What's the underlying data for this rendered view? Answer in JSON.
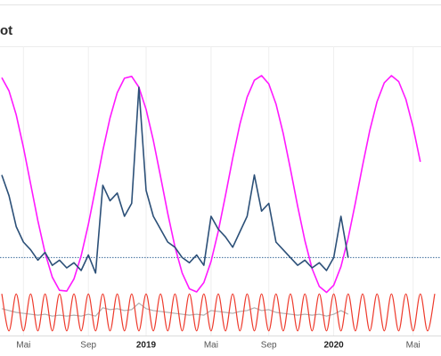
{
  "chart_data": {
    "type": "line",
    "title": "ot",
    "categories": [
      null,
      null,
      null,
      "Mai",
      null,
      null,
      null,
      null,
      null,
      null,
      null,
      null,
      "Sep",
      null,
      null,
      null,
      null,
      null,
      null,
      null,
      "2019",
      null,
      null,
      null,
      null,
      null,
      null,
      null,
      null,
      "Mai",
      null,
      null,
      null,
      null,
      null,
      null,
      null,
      "Sep",
      null,
      null,
      null,
      null,
      null,
      null,
      null,
      null,
      "2020",
      null,
      null,
      null,
      null,
      null,
      null,
      null,
      null,
      null,
      null,
      "Mai",
      null,
      null,
      null
    ],
    "ylim": [
      0,
      100
    ],
    "y2lim": [
      -1.2,
      1.2
    ],
    "reference_line": 14,
    "grid": true,
    "series": [
      {
        "color": "#ff19ff",
        "values": [
          83.7,
          78.6,
          69.3,
          56.7,
          42.5,
          28.3,
          15.8,
          6.4,
          1.3,
          1.0,
          5.7,
          14.7,
          26.9,
          41.0,
          55.4,
          68.1,
          77.9,
          83.5,
          84.2,
          80.0,
          71.4,
          59.4,
          45.4,
          31.1,
          18.1,
          8.0,
          1.9,
          0.7,
          4.3,
          12.5,
          24.2,
          38.1,
          52.5,
          65.7,
          76.2,
          82.7,
          84.5,
          81.3,
          73.5,
          62.1,
          48.3,
          33.9,
          20.6,
          9.7,
          2.8,
          0.5,
          3.3,
          10.5,
          21.5,
          35.2,
          49.7,
          63.3,
          74.4,
          81.7,
          84.5,
          82.2,
          75.3,
          64.5,
          51.1,
          null,
          null
        ]
      },
      {
        "color": "#2c5078",
        "values": [
          46,
          38,
          26,
          20,
          17,
          13,
          16,
          11,
          13,
          10,
          12,
          9,
          15,
          8,
          42,
          36,
          39,
          30,
          35,
          80,
          40,
          30,
          25,
          20,
          18,
          14,
          12,
          15,
          11,
          30,
          25,
          22,
          18,
          24,
          30,
          46,
          32,
          35,
          20,
          17,
          14,
          11,
          13,
          10,
          12,
          9,
          14,
          30,
          14,
          null,
          null,
          null,
          null,
          null,
          null,
          null,
          null,
          null,
          null,
          null,
          null
        ]
      },
      {
        "color": "#ee3a2c",
        "axis": "y2",
        "smooth": true,
        "values": [
          1,
          -1,
          1,
          -1,
          1,
          -1,
          1,
          -1,
          1,
          -1,
          1,
          -1,
          1,
          -1,
          1,
          -1,
          1,
          -1,
          1,
          -1,
          1,
          -1,
          1,
          -1,
          1,
          -1,
          1,
          -1,
          1,
          -1,
          1,
          -1,
          1,
          -1,
          1,
          -1,
          1,
          -1,
          1,
          -1,
          1,
          -1,
          1,
          -1,
          1,
          -1,
          1,
          -1,
          1,
          -1,
          1,
          -1,
          1,
          -1,
          1,
          -1,
          1,
          -1,
          1,
          -1,
          1
        ]
      },
      {
        "color": "#b0b0b0",
        "axis": "y2",
        "values": [
          0.2,
          0.1,
          0,
          -0.05,
          -0.1,
          -0.15,
          -0.1,
          -0.2,
          -0.15,
          -0.2,
          -0.15,
          -0.2,
          -0.1,
          -0.2,
          0.25,
          0.15,
          0.2,
          0.1,
          0.15,
          0.5,
          0.2,
          0.1,
          0.05,
          0,
          -0.05,
          -0.1,
          -0.15,
          -0.1,
          -0.15,
          0.1,
          0.05,
          0,
          -0.05,
          0.05,
          0.1,
          0.25,
          0.1,
          0.15,
          0,
          -0.05,
          -0.1,
          -0.15,
          -0.1,
          -0.15,
          -0.1,
          -0.2,
          -0.1,
          0.1,
          -0.1,
          null,
          null,
          null,
          null,
          null,
          null,
          null,
          null,
          null,
          null,
          null,
          null
        ]
      }
    ]
  }
}
